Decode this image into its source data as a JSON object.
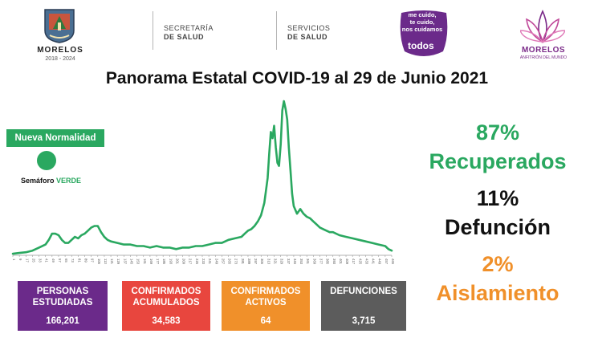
{
  "header": {
    "logo_text": "MORELOS",
    "logo_years": "2018 - 2024",
    "secretaria_line1": "SECRETARÍA",
    "secretaria_line2": "DE SALUD",
    "servicios_line1": "SERVICIOS",
    "servicios_line2": "DE SALUD",
    "badge_lines": [
      "me cuido,",
      "te cuido,",
      "nos cuidamos"
    ],
    "badge_todos": "todos",
    "badge_color": "#6b2a8a",
    "morelos2_text": "MORELOS",
    "morelos2_sub": "ANFITRIÓN DEL MUNDO"
  },
  "title": "Panorama Estatal COVID-19 al 29 de Junio 2021",
  "semaforo": {
    "badge_label": "Nueva Normalidad",
    "label_prefix": "Semáforo",
    "label_color_word": "VERDE",
    "color": "#2aa860"
  },
  "chart_data": {
    "type": "line",
    "title": "",
    "xlabel": "",
    "ylabel": "",
    "x_ticks": [
      1,
      9,
      17,
      25,
      33,
      41,
      49,
      57,
      65,
      73,
      81,
      89,
      97,
      105,
      113,
      121,
      129,
      137,
      145,
      153,
      161,
      169,
      177,
      185,
      193,
      201,
      209,
      217,
      225,
      233,
      241,
      249,
      257,
      265,
      273,
      281,
      289,
      297,
      305,
      313,
      321,
      329,
      337,
      345,
      353,
      361,
      369,
      377,
      385,
      393,
      401,
      409,
      417,
      425,
      433,
      441,
      449,
      457,
      465
    ],
    "xlim": [
      1,
      465
    ],
    "ylim": [
      0,
      100
    ],
    "grid": false,
    "line_color": "#2aa860",
    "series": [
      {
        "x": [
          1,
          9,
          17,
          25,
          33,
          41,
          45,
          49,
          53,
          57,
          61,
          65,
          69,
          73,
          77,
          81,
          85,
          89,
          93,
          97,
          101,
          105,
          109,
          113,
          117,
          121,
          129,
          137,
          145,
          153,
          161,
          169,
          177,
          185,
          193,
          201,
          209,
          217,
          225,
          233,
          241,
          249,
          257,
          265,
          273,
          281,
          285,
          289,
          293,
          297,
          301,
          305,
          309,
          313,
          315,
          317,
          319,
          321,
          323,
          325,
          327,
          329,
          331,
          333,
          335,
          337,
          339,
          341,
          343,
          345,
          349,
          353,
          357,
          361,
          365,
          369,
          373,
          377,
          381,
          385,
          389,
          393,
          401,
          409,
          417,
          425,
          433,
          441,
          449,
          457,
          461,
          465
        ],
        "y": [
          1,
          1.5,
          2,
          3,
          5,
          7,
          10,
          14,
          14,
          13,
          10,
          8,
          8,
          10,
          12,
          11,
          13,
          14,
          16,
          18,
          19,
          19,
          15,
          12,
          10,
          9,
          8,
          7,
          7,
          6,
          6,
          5,
          6,
          5,
          5,
          4,
          5,
          5,
          6,
          6,
          7,
          8,
          8,
          10,
          11,
          12,
          14,
          16,
          17,
          19,
          22,
          26,
          34,
          50,
          66,
          80,
          76,
          84,
          70,
          60,
          58,
          72,
          94,
          100,
          95,
          88,
          70,
          55,
          40,
          32,
          27,
          30,
          27,
          25,
          24,
          22,
          20,
          18,
          17,
          16,
          15,
          15,
          13,
          12,
          11,
          10,
          9,
          8,
          7,
          6,
          4,
          3
        ]
      }
    ]
  },
  "stats": {
    "recuperados_pct": "87%",
    "recuperados_label": "Recuperados",
    "recuperados_color": "#2aa860",
    "defuncion_pct": "11%",
    "defuncion_label": "Defunción",
    "defuncion_color": "#111111",
    "aislamiento_pct": "2%",
    "aislamiento_label": "Aislamiento",
    "aislamiento_color": "#f0902a"
  },
  "boxes": [
    {
      "caption": "PERSONAS\nESTUDIADAS",
      "value": "166,201",
      "color": "#6b2a8a"
    },
    {
      "caption": "CONFIRMADOS\nACUMULADOS",
      "value": "34,583",
      "color": "#e8463e"
    },
    {
      "caption": "CONFIRMADOS\nACTIVOS",
      "value": "64",
      "color": "#f0902a"
    },
    {
      "caption": "DEFUNCIONES",
      "value": "3,715",
      "color": "#5c5c5c"
    }
  ]
}
